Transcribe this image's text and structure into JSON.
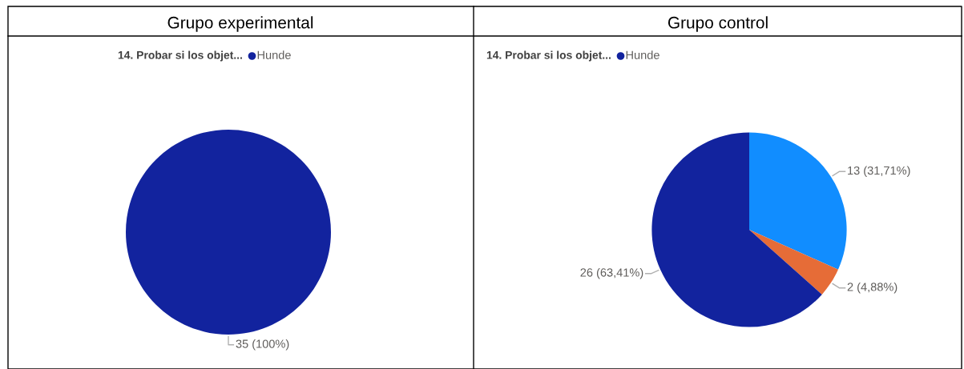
{
  "chart_data": [
    {
      "type": "pie",
      "title": "Grupo experimental",
      "legend_title": "14. Probar si los objet...",
      "legend": "top",
      "categories": [
        "Hunde"
      ],
      "values": [
        35
      ],
      "colors": [
        "#12239e"
      ],
      "value_labels": [
        "35 (100%)"
      ]
    },
    {
      "type": "pie",
      "title": "Grupo control",
      "legend_title": "14. Probar si los objet...",
      "legend": "top",
      "categories": [
        null,
        null,
        "Hunde"
      ],
      "values": [
        13,
        2,
        26
      ],
      "colors": [
        "#118dff",
        "#e66c37",
        "#12239e"
      ],
      "value_labels": [
        "13 (31,71%)",
        "2 (4,88%)",
        "26 (63,41%)"
      ]
    }
  ]
}
